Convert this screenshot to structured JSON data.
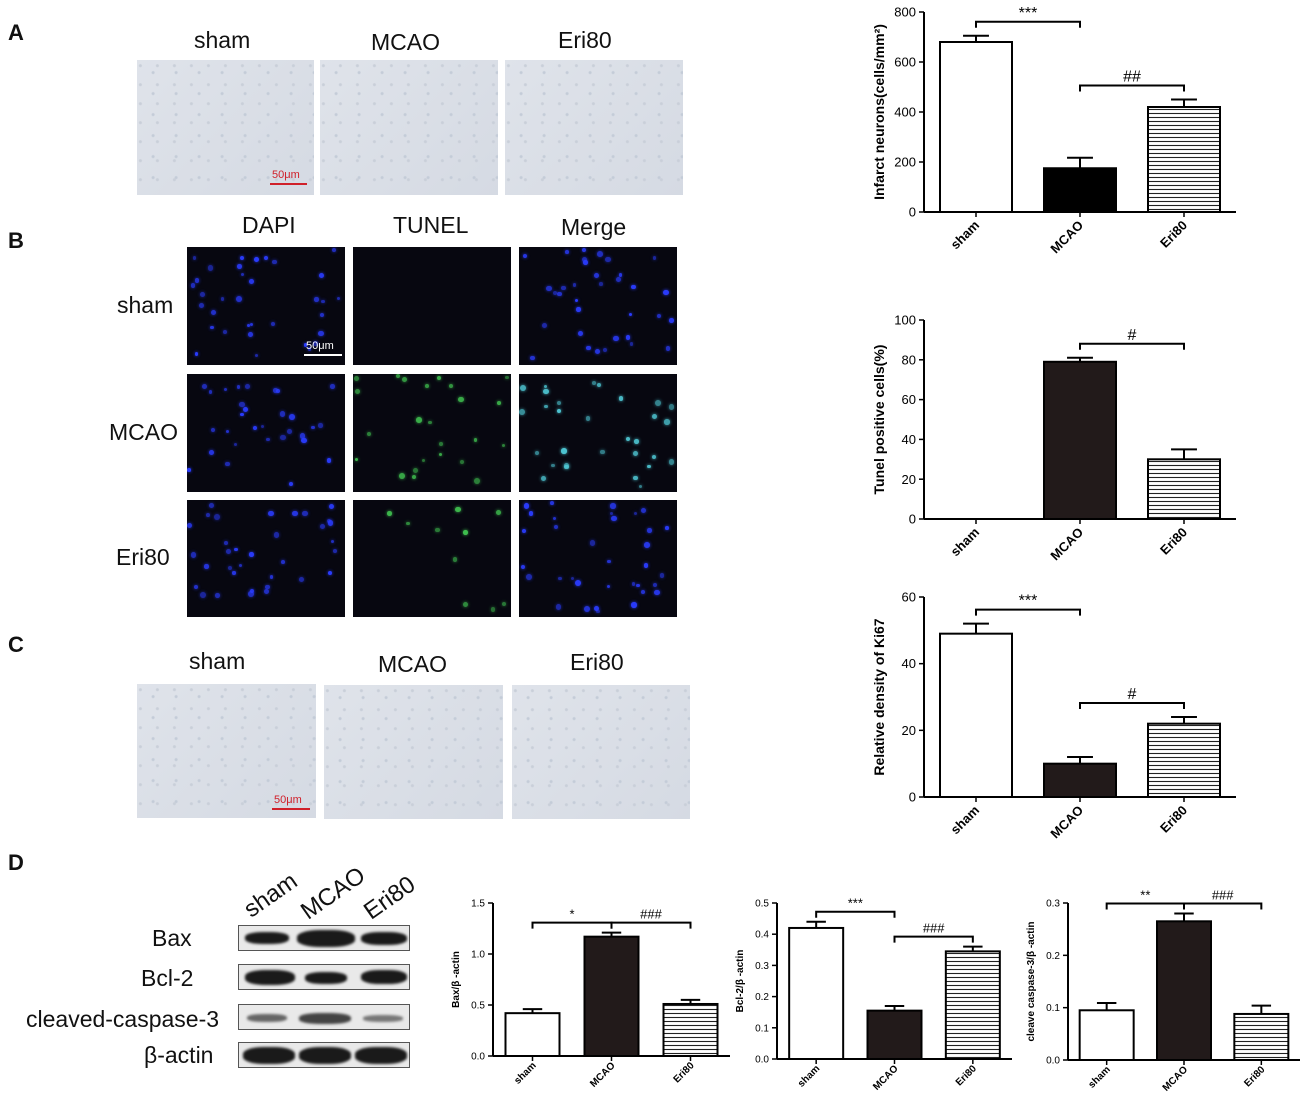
{
  "panels": {
    "A": {
      "letter": "A",
      "columns": [
        "sham",
        "MCAO",
        "Eri80"
      ],
      "scale_bar": "50μm"
    },
    "B": {
      "letter": "B",
      "columns": [
        "DAPI",
        "TUNEL",
        "Merge"
      ],
      "rows": [
        "sham",
        "MCAO",
        "Eri80"
      ],
      "scale_bar": "50μm"
    },
    "C": {
      "letter": "C",
      "columns": [
        "sham",
        "MCAO",
        "Eri80"
      ],
      "scale_bar": "50μm"
    },
    "D": {
      "letter": "D",
      "lanes": [
        "sham",
        "MCAO",
        "Eri80"
      ],
      "proteins": [
        "Bax",
        "Bcl-2",
        "cleaved-caspase-3",
        "β-actin"
      ]
    }
  },
  "chart_data": [
    {
      "id": "infarct",
      "type": "bar",
      "categories": [
        "sham",
        "MCAO",
        "Eri80"
      ],
      "values": [
        680,
        175,
        420
      ],
      "errors": [
        25,
        42,
        30
      ],
      "fills": [
        "white",
        "black",
        "hatch"
      ],
      "ylabel": "Infarct neurons(cells/mm²)",
      "ylim": [
        0,
        800
      ],
      "yticks": [
        0,
        200,
        400,
        600,
        800
      ],
      "annotations": [
        {
          "from": 0,
          "to": 1,
          "text": "***"
        },
        {
          "from": 1,
          "to": 2,
          "text": "##"
        }
      ]
    },
    {
      "id": "tunel",
      "type": "bar",
      "categories": [
        "sham",
        "MCAO",
        "Eri80"
      ],
      "values": [
        0,
        79,
        30
      ],
      "errors": [
        0,
        2,
        5
      ],
      "fills": [
        "white",
        "dark",
        "hatch"
      ],
      "ylabel": "Tunel positive cells(%)",
      "ylim": [
        0,
        100
      ],
      "yticks": [
        0,
        20,
        40,
        60,
        80,
        100
      ],
      "annotations": [
        {
          "from": 1,
          "to": 2,
          "text": "#"
        }
      ]
    },
    {
      "id": "ki67",
      "type": "bar",
      "categories": [
        "sham",
        "MCAO",
        "Eri80"
      ],
      "values": [
        49,
        10,
        22
      ],
      "errors": [
        3,
        2,
        2
      ],
      "fills": [
        "white",
        "dark",
        "hatch"
      ],
      "ylabel": "Relative density of Ki67",
      "ylim": [
        0,
        60
      ],
      "yticks": [
        0,
        20,
        40,
        60
      ],
      "annotations": [
        {
          "from": 0,
          "to": 1,
          "text": "***"
        },
        {
          "from": 1,
          "to": 2,
          "text": "#"
        }
      ]
    },
    {
      "id": "bax",
      "type": "bar",
      "categories": [
        "sham",
        "MCAO",
        "Eri80"
      ],
      "values": [
        0.42,
        1.17,
        0.51
      ],
      "errors": [
        0.04,
        0.04,
        0.04
      ],
      "fills": [
        "white",
        "dark",
        "hatch"
      ],
      "ylabel": "Bax/β -actin",
      "ylim": [
        0,
        1.5
      ],
      "yticks": [
        0.0,
        0.5,
        1.0,
        1.5
      ],
      "annotations": [
        {
          "from": 0,
          "to": 1,
          "text": "*"
        },
        {
          "from": 1,
          "to": 2,
          "text": "###"
        }
      ]
    },
    {
      "id": "bcl2",
      "type": "bar",
      "categories": [
        "sham",
        "MCAO",
        "Eri80"
      ],
      "values": [
        0.42,
        0.155,
        0.345
      ],
      "errors": [
        0.02,
        0.015,
        0.015
      ],
      "fills": [
        "white",
        "dark",
        "hatch"
      ],
      "ylabel": "Bcl-2/β -actin",
      "ylim": [
        0,
        0.5
      ],
      "yticks": [
        0.0,
        0.1,
        0.2,
        0.3,
        0.4,
        0.5
      ],
      "annotations": [
        {
          "from": 0,
          "to": 1,
          "text": "***"
        },
        {
          "from": 1,
          "to": 2,
          "text": "###"
        }
      ]
    },
    {
      "id": "casp3",
      "type": "bar",
      "categories": [
        "sham",
        "MCAO",
        "Eri80"
      ],
      "values": [
        0.095,
        0.265,
        0.088
      ],
      "errors": [
        0.014,
        0.015,
        0.016
      ],
      "fills": [
        "white",
        "dark",
        "hatch"
      ],
      "ylabel": "cleave caspase-3/β -actin",
      "ylim": [
        0,
        0.3
      ],
      "yticks": [
        0.0,
        0.1,
        0.2,
        0.3
      ],
      "annotations": [
        {
          "from": 0,
          "to": 1,
          "text": "**"
        },
        {
          "from": 1,
          "to": 2,
          "text": "###"
        }
      ]
    }
  ]
}
